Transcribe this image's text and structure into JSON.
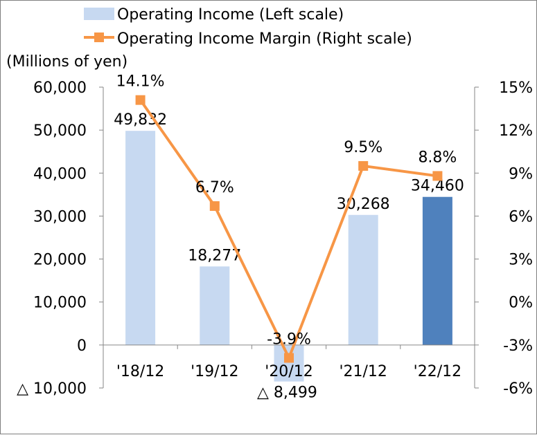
{
  "chart_data": {
    "type": "bar+line",
    "categories": [
      "'18/12",
      "'19/12",
      "'20/12",
      "'21/12",
      "'22/12"
    ],
    "unit_label": "(Millions of yen)",
    "series": [
      {
        "name": "Operating Income (Left scale)",
        "type": "bar",
        "axis": "left",
        "values": [
          49832,
          18277,
          -8499,
          30268,
          34460
        ],
        "labels": [
          "49,832",
          "18,277",
          "△ 8,499",
          "30,268",
          "34,460"
        ],
        "color": "#c7d9f1",
        "highlight_color": "#4f81bd",
        "highlight_index": 4
      },
      {
        "name": "Operating Income Margin (Right scale)",
        "type": "line",
        "axis": "right",
        "values": [
          14.1,
          6.7,
          -3.9,
          9.5,
          8.8
        ],
        "labels": [
          "14.1%",
          "6.7%",
          "-3.9%",
          "9.5%",
          "8.8%"
        ],
        "color": "#f79646"
      }
    ],
    "left_axis": {
      "min": -10000,
      "max": 60000,
      "ticks": [
        60000,
        50000,
        40000,
        30000,
        20000,
        10000,
        0,
        -10000
      ],
      "tick_labels": [
        "60,000",
        "50,000",
        "40,000",
        "30,000",
        "20,000",
        "10,000",
        "0",
        "△ 10,000"
      ]
    },
    "right_axis": {
      "min": -6,
      "max": 15,
      "ticks": [
        15,
        12,
        9,
        6,
        3,
        0,
        -3,
        -6
      ],
      "tick_labels": [
        "15%",
        "12%",
        "9%",
        "6%",
        "3%",
        "0%",
        "-3%",
        "-6%"
      ]
    },
    "legend_position": "top"
  }
}
